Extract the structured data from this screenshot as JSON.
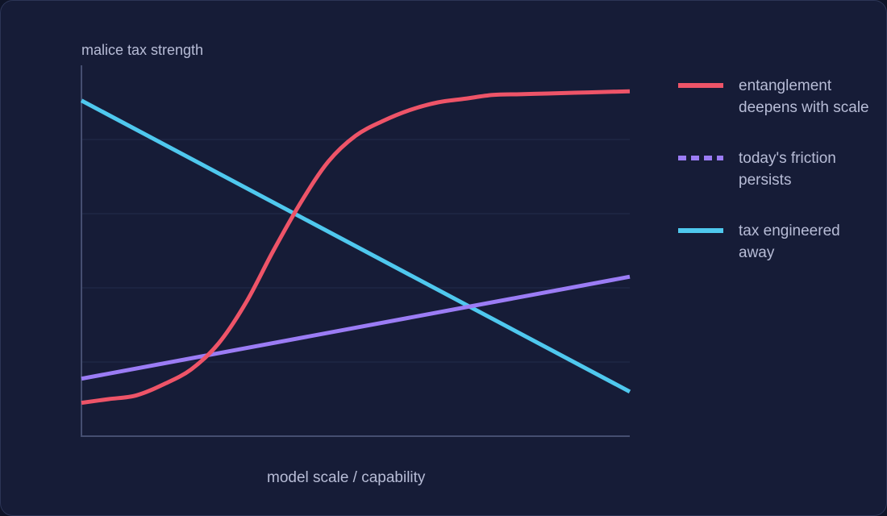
{
  "chart_data": {
    "type": "line",
    "title": "",
    "ylabel": "malice tax strength",
    "xlabel": "model scale / capability",
    "grid": true,
    "legend_position": "right",
    "xlim": [
      0,
      1
    ],
    "ylim": [
      0,
      1
    ],
    "series": [
      {
        "name": "entanglement\ndeepens with scale",
        "color": "#ee5468",
        "style": "solid",
        "x": [
          0,
          0.05,
          0.1,
          0.15,
          0.2,
          0.25,
          0.3,
          0.35,
          0.4,
          0.45,
          0.5,
          0.55,
          0.6,
          0.65,
          0.7,
          0.75,
          0.8,
          0.85,
          0.9,
          0.95,
          1.0
        ],
        "y": [
          0.09,
          0.1,
          0.11,
          0.14,
          0.18,
          0.25,
          0.36,
          0.5,
          0.63,
          0.74,
          0.81,
          0.85,
          0.88,
          0.9,
          0.91,
          0.92,
          0.922,
          0.924,
          0.926,
          0.928,
          0.93
        ]
      },
      {
        "name": "today's friction\npersists",
        "color": "#9b7cf5",
        "style": "dashed",
        "x": [
          0,
          1
        ],
        "y": [
          0.155,
          0.43
        ]
      },
      {
        "name": "tax engineered\naway",
        "color": "#4fc8ee",
        "style": "solid",
        "x": [
          0,
          1
        ],
        "y": [
          0.905,
          0.12
        ]
      }
    ]
  }
}
